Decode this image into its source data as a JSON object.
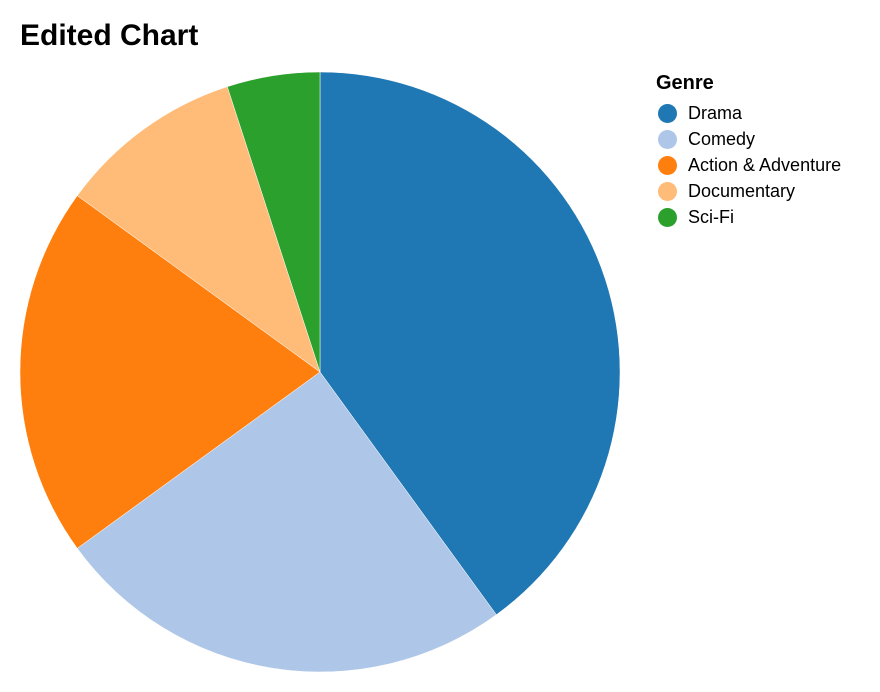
{
  "chart_data": {
    "type": "pie",
    "title": "Edited Chart",
    "legend_title": "Genre",
    "legend_position": "top-right",
    "categories": [
      "Drama",
      "Comedy",
      "Action & Adventure",
      "Documentary",
      "Sci-Fi"
    ],
    "values": [
      40,
      25,
      20,
      10,
      5
    ],
    "colors": [
      "#1f77b4",
      "#aec7e8",
      "#ff7f0e",
      "#ffbb78",
      "#2ca02c"
    ]
  }
}
